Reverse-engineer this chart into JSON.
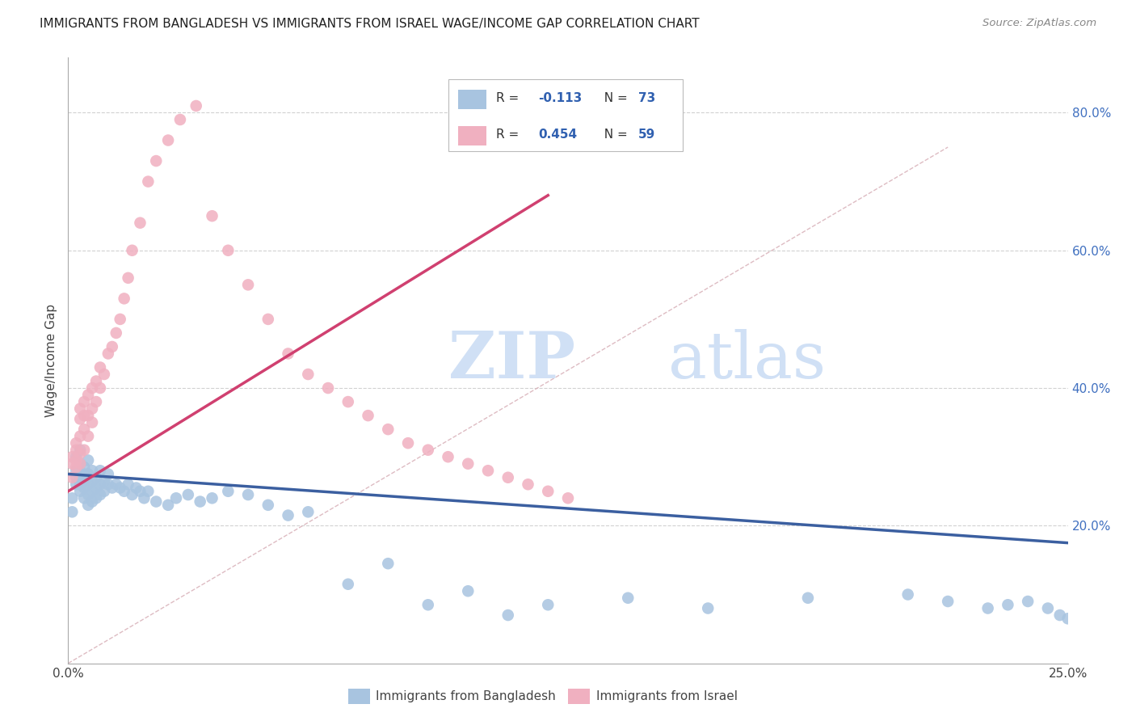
{
  "title": "IMMIGRANTS FROM BANGLADESH VS IMMIGRANTS FROM ISRAEL WAGE/INCOME GAP CORRELATION CHART",
  "source": "Source: ZipAtlas.com",
  "ylabel": "Wage/Income Gap",
  "right_yticklabels": [
    "20.0%",
    "40.0%",
    "60.0%",
    "80.0%"
  ],
  "right_ytick_vals": [
    0.2,
    0.4,
    0.6,
    0.8
  ],
  "xlim": [
    0.0,
    0.25
  ],
  "ylim": [
    0.0,
    0.88
  ],
  "series1_label": "Immigrants from Bangladesh",
  "series1_color": "#a8c4e0",
  "series2_label": "Immigrants from Israel",
  "series2_color": "#f0b0c0",
  "legend_color": "#3060b0",
  "watermark_zip": "ZIP",
  "watermark_atlas": "atlas",
  "watermark_color": "#d0e0f5",
  "gridline_color": "#cccccc",
  "trend_blue": "#3b5fa0",
  "trend_pink": "#d04070",
  "diag_color": "#d8b0b8",
  "bd_x": [
    0.001,
    0.001,
    0.002,
    0.002,
    0.002,
    0.002,
    0.003,
    0.003,
    0.003,
    0.003,
    0.003,
    0.004,
    0.004,
    0.004,
    0.004,
    0.004,
    0.005,
    0.005,
    0.005,
    0.005,
    0.005,
    0.006,
    0.006,
    0.006,
    0.006,
    0.007,
    0.007,
    0.007,
    0.008,
    0.008,
    0.008,
    0.009,
    0.009,
    0.01,
    0.01,
    0.011,
    0.012,
    0.013,
    0.014,
    0.015,
    0.016,
    0.017,
    0.018,
    0.019,
    0.02,
    0.022,
    0.025,
    0.027,
    0.03,
    0.033,
    0.036,
    0.04,
    0.045,
    0.05,
    0.055,
    0.06,
    0.07,
    0.08,
    0.09,
    0.1,
    0.11,
    0.12,
    0.14,
    0.16,
    0.185,
    0.21,
    0.22,
    0.23,
    0.235,
    0.24,
    0.245,
    0.248,
    0.25
  ],
  "bd_y": [
    0.22,
    0.24,
    0.26,
    0.27,
    0.28,
    0.3,
    0.25,
    0.26,
    0.27,
    0.29,
    0.31,
    0.24,
    0.255,
    0.265,
    0.275,
    0.285,
    0.23,
    0.245,
    0.26,
    0.275,
    0.295,
    0.235,
    0.25,
    0.265,
    0.28,
    0.24,
    0.255,
    0.27,
    0.245,
    0.26,
    0.28,
    0.25,
    0.265,
    0.26,
    0.275,
    0.255,
    0.26,
    0.255,
    0.25,
    0.26,
    0.245,
    0.255,
    0.25,
    0.24,
    0.25,
    0.235,
    0.23,
    0.24,
    0.245,
    0.235,
    0.24,
    0.25,
    0.245,
    0.23,
    0.215,
    0.22,
    0.115,
    0.145,
    0.085,
    0.105,
    0.07,
    0.085,
    0.095,
    0.08,
    0.095,
    0.1,
    0.09,
    0.08,
    0.085,
    0.09,
    0.08,
    0.07,
    0.065
  ],
  "is_x": [
    0.001,
    0.001,
    0.001,
    0.002,
    0.002,
    0.002,
    0.002,
    0.003,
    0.003,
    0.003,
    0.003,
    0.003,
    0.004,
    0.004,
    0.004,
    0.004,
    0.005,
    0.005,
    0.005,
    0.006,
    0.006,
    0.006,
    0.007,
    0.007,
    0.008,
    0.008,
    0.009,
    0.01,
    0.011,
    0.012,
    0.013,
    0.014,
    0.015,
    0.016,
    0.018,
    0.02,
    0.022,
    0.025,
    0.028,
    0.032,
    0.036,
    0.04,
    0.045,
    0.05,
    0.055,
    0.06,
    0.065,
    0.07,
    0.075,
    0.08,
    0.085,
    0.09,
    0.095,
    0.1,
    0.105,
    0.11,
    0.115,
    0.12,
    0.125
  ],
  "is_y": [
    0.27,
    0.29,
    0.3,
    0.285,
    0.295,
    0.31,
    0.32,
    0.29,
    0.305,
    0.33,
    0.355,
    0.37,
    0.31,
    0.34,
    0.36,
    0.38,
    0.33,
    0.36,
    0.39,
    0.35,
    0.37,
    0.4,
    0.38,
    0.41,
    0.4,
    0.43,
    0.42,
    0.45,
    0.46,
    0.48,
    0.5,
    0.53,
    0.56,
    0.6,
    0.64,
    0.7,
    0.73,
    0.76,
    0.79,
    0.81,
    0.65,
    0.6,
    0.55,
    0.5,
    0.45,
    0.42,
    0.4,
    0.38,
    0.36,
    0.34,
    0.32,
    0.31,
    0.3,
    0.29,
    0.28,
    0.27,
    0.26,
    0.25,
    0.24
  ],
  "trend_bd_x0": 0.0,
  "trend_bd_x1": 0.25,
  "trend_bd_y0": 0.275,
  "trend_bd_y1": 0.175,
  "trend_is_x0": 0.0,
  "trend_is_x1": 0.12,
  "trend_is_y0": 0.25,
  "trend_is_y1": 0.68
}
